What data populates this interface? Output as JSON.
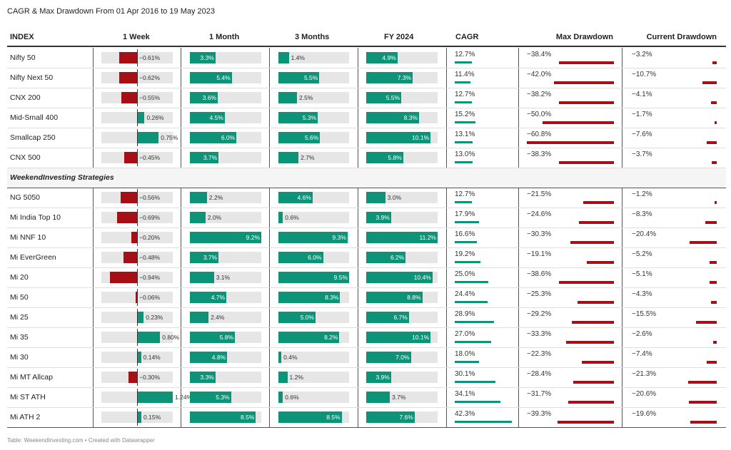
{
  "title": "CAGR & Max Drawdown From 01 Apr 2016 to 19 May 2023",
  "footer": "Table: WeekendInvesting.com • Created with Datawrapper",
  "colors": {
    "positive": "#0d9478",
    "negative": "#a50f15",
    "track": "#e6e6e6"
  },
  "chart_data": {
    "type": "table",
    "columns": [
      "INDEX",
      "1 Week",
      "1 Month",
      "3 Months",
      "FY 2024",
      "CAGR",
      "Max Drawdown",
      "Current Drawdown"
    ],
    "section_label": "WeekendInvesting Strategies",
    "groups": [
      {
        "rows": [
          {
            "name": "Nifty 50",
            "week": -0.61,
            "month": 3.3,
            "three_months": 1.4,
            "fy2024": 4.9,
            "cagr": 12.7,
            "max_dd": -38.4,
            "cur_dd": -3.2
          },
          {
            "name": "Nifty Next 50",
            "week": -0.62,
            "month": 5.4,
            "three_months": 5.5,
            "fy2024": 7.3,
            "cagr": 11.4,
            "max_dd": -42.0,
            "cur_dd": -10.7
          },
          {
            "name": "CNX 200",
            "week": -0.55,
            "month": 3.6,
            "three_months": 2.5,
            "fy2024": 5.5,
            "cagr": 12.7,
            "max_dd": -38.2,
            "cur_dd": -4.1
          },
          {
            "name": "Mid-Small 400",
            "week": 0.26,
            "month": 4.5,
            "three_months": 5.3,
            "fy2024": 8.3,
            "cagr": 15.2,
            "max_dd": -50.0,
            "cur_dd": -1.7
          },
          {
            "name": "Smallcap 250",
            "week": 0.75,
            "month": 6.0,
            "three_months": 5.6,
            "fy2024": 10.1,
            "cagr": 13.1,
            "max_dd": -60.8,
            "cur_dd": -7.6
          },
          {
            "name": "CNX 500",
            "week": -0.45,
            "month": 3.7,
            "three_months": 2.7,
            "fy2024": 5.8,
            "cagr": 13.0,
            "max_dd": -38.3,
            "cur_dd": -3.7
          }
        ]
      },
      {
        "rows": [
          {
            "name": "NG 5050",
            "week": -0.56,
            "month": 2.2,
            "three_months": 4.6,
            "fy2024": 3.0,
            "cagr": 12.7,
            "max_dd": -21.5,
            "cur_dd": -1.2
          },
          {
            "name": "Mi India Top 10",
            "week": -0.69,
            "month": 2.0,
            "three_months": 0.6,
            "fy2024": 3.9,
            "cagr": 17.9,
            "max_dd": -24.6,
            "cur_dd": -8.3
          },
          {
            "name": "Mi NNF 10",
            "week": -0.2,
            "month": 9.2,
            "three_months": 9.3,
            "fy2024": 11.2,
            "cagr": 16.6,
            "max_dd": -30.3,
            "cur_dd": -20.4
          },
          {
            "name": "Mi EverGreen",
            "week": -0.48,
            "month": 3.7,
            "three_months": 6.0,
            "fy2024": 6.2,
            "cagr": 19.2,
            "max_dd": -19.1,
            "cur_dd": -5.2
          },
          {
            "name": "Mi 20",
            "week": -0.94,
            "month": 3.1,
            "three_months": 9.5,
            "fy2024": 10.4,
            "cagr": 25.0,
            "max_dd": -38.6,
            "cur_dd": -5.1
          },
          {
            "name": "Mi 50",
            "week": -0.06,
            "month": 4.7,
            "three_months": 8.3,
            "fy2024": 8.8,
            "cagr": 24.4,
            "max_dd": -25.3,
            "cur_dd": -4.3
          },
          {
            "name": "Mi 25",
            "week": 0.23,
            "month": 2.4,
            "three_months": 5.0,
            "fy2024": 6.7,
            "cagr": 28.9,
            "max_dd": -29.2,
            "cur_dd": -15.5
          },
          {
            "name": "Mi 35",
            "week": 0.8,
            "month": 5.8,
            "three_months": 8.2,
            "fy2024": 10.1,
            "cagr": 27.0,
            "max_dd": -33.3,
            "cur_dd": -2.6
          },
          {
            "name": "Mi 30",
            "week": 0.14,
            "month": 4.8,
            "three_months": 0.4,
            "fy2024": 7.0,
            "cagr": 18.0,
            "max_dd": -22.3,
            "cur_dd": -7.4
          },
          {
            "name": "Mi MT Allcap",
            "week": -0.3,
            "month": 3.3,
            "three_months": 1.2,
            "fy2024": 3.9,
            "cagr": 30.1,
            "max_dd": -28.4,
            "cur_dd": -21.3
          },
          {
            "name": "Mi ST ATH",
            "week": 1.24,
            "month": 5.3,
            "three_months": 0.6,
            "fy2024": 3.7,
            "cagr": 34.1,
            "max_dd": -31.7,
            "cur_dd": -20.6
          },
          {
            "name": "Mi ATH 2",
            "week": 0.15,
            "month": 8.5,
            "three_months": 8.5,
            "fy2024": 7.6,
            "cagr": 42.3,
            "max_dd": -39.3,
            "cur_dd": -19.6
          }
        ]
      }
    ]
  }
}
